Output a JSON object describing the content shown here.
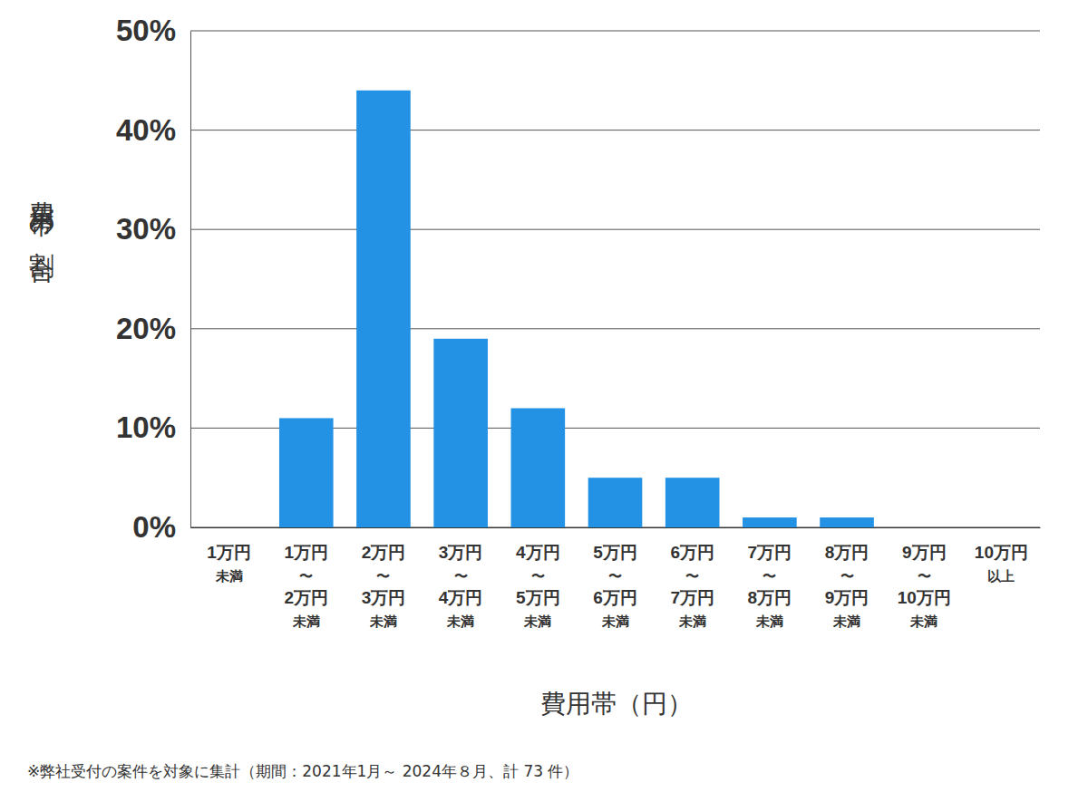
{
  "chart_data": {
    "type": "bar",
    "x_label": "費用帯（円）",
    "y_label": "費用帯の割合",
    "annotations": [
      "※弊社受付の案件を対象に集計（期間：2021年1月～ 2024年８月、計 73 件）"
    ],
    "categories": [
      "1万円\n未満",
      "1万円\n〜\n2万円\n未満",
      "2万円\n〜\n3万円\n未満",
      "3万円\n〜\n4万円\n未満",
      "4万円\n〜\n5万円\n未満",
      "5万円\n〜\n6万円\n未満",
      "6万円\n〜\n7万円\n未満",
      "7万円\n〜\n8万円\n未満",
      "8万円\n〜\n9万円\n未満",
      "9万円\n〜\n10万円\n未満",
      "10万円\n以上"
    ],
    "values": [
      0,
      11,
      44,
      19,
      12,
      5,
      5,
      1,
      1,
      0,
      0
    ],
    "color": "#2492e4",
    "ylim": [
      0,
      50
    ],
    "yticks": [
      {
        "value": 0,
        "label": "0%"
      },
      {
        "value": 10,
        "label": "10%"
      },
      {
        "value": 20,
        "label": "20%"
      },
      {
        "value": 30,
        "label": "30%"
      },
      {
        "value": 40,
        "label": "40%"
      },
      {
        "value": 50,
        "label": "50%"
      }
    ],
    "grid": true
  }
}
